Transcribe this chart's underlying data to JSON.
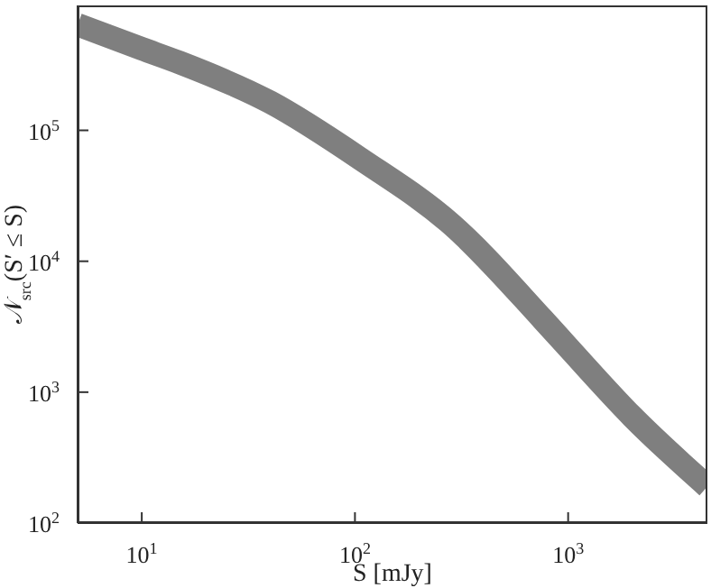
{
  "chart_data": {
    "type": "line",
    "xlabel": "S [mJy]",
    "ylabel": "𝒩$_{src}$(S′ ≤ S)",
    "log": "xy",
    "marker": "none",
    "line_style": "solid",
    "xlim": [
      5,
      4500
    ],
    "ylim": [
      100,
      900000
    ],
    "xticks": [
      {
        "value": 10,
        "label": "10$^{1}$"
      },
      {
        "value": 100,
        "label": "10$^{2}$"
      },
      {
        "value": 1000,
        "label": "10$^{3}$"
      }
    ],
    "yticks": [
      {
        "value": 100,
        "label": "10$^{2}$"
      },
      {
        "value": 1000,
        "label": "10$^{3}$"
      },
      {
        "value": 10000,
        "label": "10$^{4}$"
      },
      {
        "value": 100000,
        "label": "10$^{5}$"
      }
    ],
    "series": [
      {
        "color": "#7f7f7f",
        "x": [
          5,
          10,
          15,
          40,
          107,
          285,
          760,
          1000,
          2000,
          4500
        ],
        "values": [
          640000,
          420000,
          330000,
          164000,
          60000,
          19000,
          3600,
          2200,
          650,
          190
        ]
      }
    ]
  }
}
